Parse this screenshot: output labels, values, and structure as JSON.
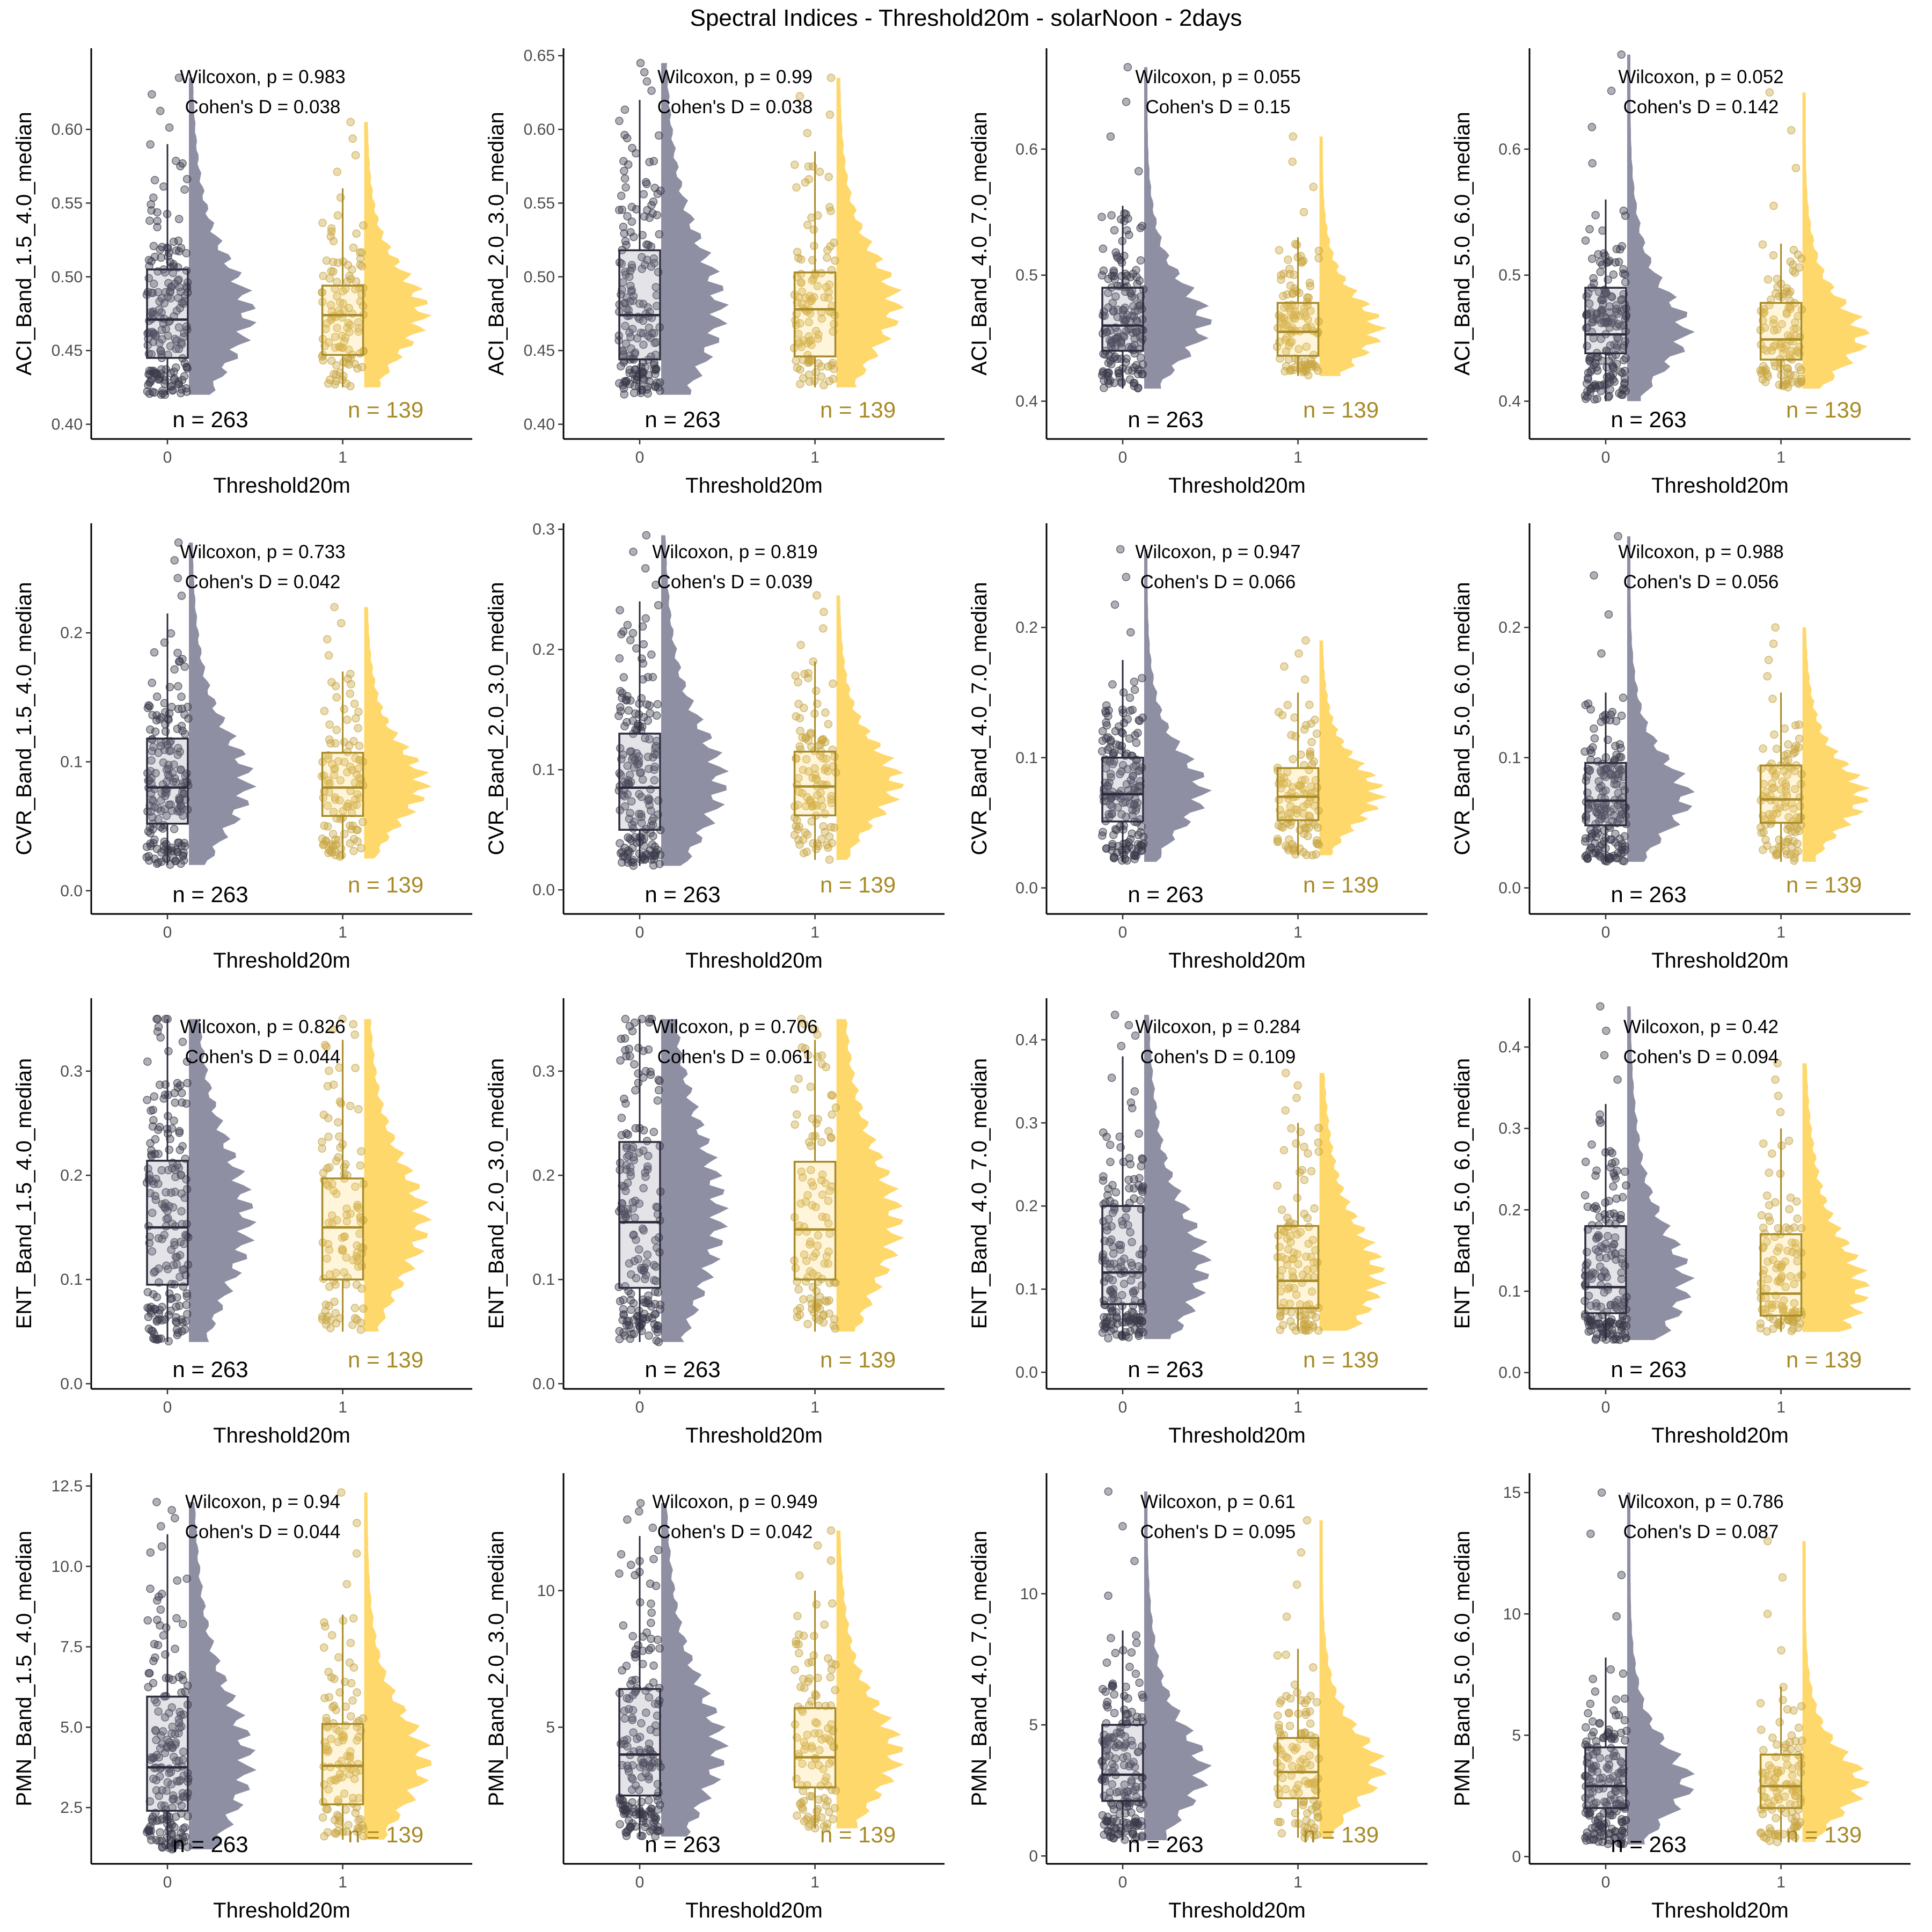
{
  "title": "Spectral Indices - Threshold20m - solarNoon - 2days",
  "colors": {
    "group0_fill": "#8f8fa3",
    "group0_point": "#3a3a4a",
    "group0_box": "#2b2b3d",
    "group1_fill": "#ffd86b",
    "group1_point": "#c9a640",
    "group1_box": "#a88a26",
    "n1_text": "#a88a26"
  },
  "chart_data": [
    {
      "type": "raincloud",
      "ylabel": "ACI_Band_1.5_4.0_median",
      "xlabel": "Threshold20m",
      "categories": [
        "0",
        "1"
      ],
      "ylim": [
        0.39,
        0.655
      ],
      "yticks": [
        0.4,
        0.45,
        0.5,
        0.55,
        0.6
      ],
      "tick_labels": [
        "0.40",
        "0.45",
        "0.50",
        "0.55",
        "0.60"
      ],
      "stat_wilcoxon": "Wilcoxon, p = 0.983",
      "stat_cohen": "Cohen's D = 0.038",
      "n0": "n = 263",
      "n1": "n = 139",
      "series": [
        {
          "name": "0",
          "min": 0.42,
          "q1": 0.445,
          "median": 0.471,
          "q3": 0.505,
          "max": 0.59,
          "max_point": 0.635
        },
        {
          "name": "1",
          "min": 0.425,
          "q1": 0.447,
          "median": 0.474,
          "q3": 0.494,
          "max": 0.56,
          "max_point": 0.605
        }
      ]
    },
    {
      "type": "raincloud",
      "ylabel": "ACI_Band_2.0_3.0_median",
      "xlabel": "Threshold20m",
      "categories": [
        "0",
        "1"
      ],
      "ylim": [
        0.39,
        0.655
      ],
      "yticks": [
        0.4,
        0.45,
        0.5,
        0.55,
        0.6,
        0.65
      ],
      "tick_labels": [
        "0.40",
        "0.45",
        "0.50",
        "0.55",
        "0.60",
        "0.65"
      ],
      "stat_wilcoxon": "Wilcoxon, p = 0.99",
      "stat_cohen": "Cohen's D = 0.038",
      "n0": "n = 263",
      "n1": "n = 139",
      "series": [
        {
          "name": "0",
          "min": 0.42,
          "q1": 0.444,
          "median": 0.474,
          "q3": 0.518,
          "max": 0.62,
          "max_point": 0.645
        },
        {
          "name": "1",
          "min": 0.425,
          "q1": 0.446,
          "median": 0.478,
          "q3": 0.503,
          "max": 0.585,
          "max_point": 0.635
        }
      ]
    },
    {
      "type": "raincloud",
      "ylabel": "ACI_Band_4.0_7.0_median",
      "xlabel": "Threshold20m",
      "categories": [
        "0",
        "1"
      ],
      "ylim": [
        0.37,
        0.68
      ],
      "yticks": [
        0.4,
        0.5,
        0.6
      ],
      "tick_labels": [
        "0.4",
        "0.5",
        "0.6"
      ],
      "stat_wilcoxon": "Wilcoxon, p = 0.055",
      "stat_cohen": "Cohen's D = 0.15",
      "n0": "n = 263",
      "n1": "n = 139",
      "series": [
        {
          "name": "0",
          "min": 0.41,
          "q1": 0.44,
          "median": 0.46,
          "q3": 0.49,
          "max": 0.555,
          "max_point": 0.665
        },
        {
          "name": "1",
          "min": 0.42,
          "q1": 0.436,
          "median": 0.455,
          "q3": 0.478,
          "max": 0.53,
          "max_point": 0.61
        }
      ]
    },
    {
      "type": "raincloud",
      "ylabel": "ACI_Band_5.0_6.0_median",
      "xlabel": "Threshold20m",
      "categories": [
        "0",
        "1"
      ],
      "ylim": [
        0.37,
        0.68
      ],
      "yticks": [
        0.4,
        0.5,
        0.6
      ],
      "tick_labels": [
        "0.4",
        "0.5",
        "0.6"
      ],
      "stat_wilcoxon": "Wilcoxon, p = 0.052",
      "stat_cohen": "Cohen's D = 0.142",
      "n0": "n = 263",
      "n1": "n = 139",
      "series": [
        {
          "name": "0",
          "min": 0.4,
          "q1": 0.438,
          "median": 0.453,
          "q3": 0.49,
          "max": 0.56,
          "max_point": 0.675
        },
        {
          "name": "1",
          "min": 0.41,
          "q1": 0.433,
          "median": 0.449,
          "q3": 0.478,
          "max": 0.525,
          "max_point": 0.645
        }
      ]
    },
    {
      "type": "raincloud",
      "ylabel": "CVR_Band_1.5_4.0_median",
      "xlabel": "Threshold20m",
      "categories": [
        "0",
        "1"
      ],
      "ylim": [
        -0.018,
        0.285
      ],
      "yticks": [
        0.0,
        0.1,
        0.2
      ],
      "tick_labels": [
        "0.0",
        "0.1",
        "0.2"
      ],
      "stat_wilcoxon": "Wilcoxon, p = 0.733",
      "stat_cohen": "Cohen's D = 0.042",
      "n0": "n = 263",
      "n1": "n = 139",
      "series": [
        {
          "name": "0",
          "min": 0.02,
          "q1": 0.052,
          "median": 0.08,
          "q3": 0.118,
          "max": 0.215,
          "max_point": 0.27
        },
        {
          "name": "1",
          "min": 0.025,
          "q1": 0.058,
          "median": 0.08,
          "q3": 0.107,
          "max": 0.17,
          "max_point": 0.22
        }
      ]
    },
    {
      "type": "raincloud",
      "ylabel": "CVR_Band_2.0_3.0_median",
      "xlabel": "Threshold20m",
      "categories": [
        "0",
        "1"
      ],
      "ylim": [
        -0.02,
        0.305
      ],
      "yticks": [
        0.0,
        0.1,
        0.2,
        0.3
      ],
      "tick_labels": [
        "0.0",
        "0.1",
        "0.2",
        "0.3"
      ],
      "stat_wilcoxon": "Wilcoxon, p = 0.819",
      "stat_cohen": "Cohen's D = 0.039",
      "n0": "n = 263",
      "n1": "n = 139",
      "series": [
        {
          "name": "0",
          "min": 0.02,
          "q1": 0.05,
          "median": 0.085,
          "q3": 0.13,
          "max": 0.24,
          "max_point": 0.295
        },
        {
          "name": "1",
          "min": 0.025,
          "q1": 0.062,
          "median": 0.086,
          "q3": 0.115,
          "max": 0.19,
          "max_point": 0.245
        }
      ]
    },
    {
      "type": "raincloud",
      "ylabel": "CVR_Band_4.0_7.0_median",
      "xlabel": "Threshold20m",
      "categories": [
        "0",
        "1"
      ],
      "ylim": [
        -0.02,
        0.28
      ],
      "yticks": [
        0.0,
        0.1,
        0.2
      ],
      "tick_labels": [
        "0.0",
        "0.1",
        "0.2"
      ],
      "stat_wilcoxon": "Wilcoxon, p = 0.947",
      "stat_cohen": "Cohen's D = 0.066",
      "n0": "n = 263",
      "n1": "n = 139",
      "series": [
        {
          "name": "0",
          "min": 0.02,
          "q1": 0.051,
          "median": 0.072,
          "q3": 0.1,
          "max": 0.175,
          "max_point": 0.26
        },
        {
          "name": "1",
          "min": 0.025,
          "q1": 0.052,
          "median": 0.07,
          "q3": 0.092,
          "max": 0.15,
          "max_point": 0.19
        }
      ]
    },
    {
      "type": "raincloud",
      "ylabel": "CVR_Band_5.0_6.0_median",
      "xlabel": "Threshold20m",
      "categories": [
        "0",
        "1"
      ],
      "ylim": [
        -0.02,
        0.28
      ],
      "yticks": [
        0.0,
        0.1,
        0.2
      ],
      "tick_labels": [
        "0.0",
        "0.1",
        "0.2"
      ],
      "stat_wilcoxon": "Wilcoxon, p = 0.988",
      "stat_cohen": "Cohen's D = 0.056",
      "n0": "n = 263",
      "n1": "n = 139",
      "series": [
        {
          "name": "0",
          "min": 0.02,
          "q1": 0.048,
          "median": 0.067,
          "q3": 0.096,
          "max": 0.15,
          "max_point": 0.27
        },
        {
          "name": "1",
          "min": 0.02,
          "q1": 0.05,
          "median": 0.068,
          "q3": 0.094,
          "max": 0.15,
          "max_point": 0.2
        }
      ]
    },
    {
      "type": "raincloud",
      "ylabel": "ENT_Band_1.5_4.0_median",
      "xlabel": "Threshold20m",
      "categories": [
        "0",
        "1"
      ],
      "ylim": [
        -0.005,
        0.37
      ],
      "yticks": [
        0.0,
        0.1,
        0.2,
        0.3
      ],
      "tick_labels": [
        "0.0",
        "0.1",
        "0.2",
        "0.3"
      ],
      "stat_wilcoxon": "Wilcoxon, p = 0.826",
      "stat_cohen": "Cohen's D = 0.044",
      "n0": "n = 263",
      "n1": "n = 139",
      "series": [
        {
          "name": "0",
          "min": 0.04,
          "q1": 0.095,
          "median": 0.15,
          "q3": 0.214,
          "max": 0.35,
          "max_point": 0.35
        },
        {
          "name": "1",
          "min": 0.05,
          "q1": 0.1,
          "median": 0.15,
          "q3": 0.197,
          "max": 0.33,
          "max_point": 0.35
        }
      ]
    },
    {
      "type": "raincloud",
      "ylabel": "ENT_Band_2.0_3.0_median",
      "xlabel": "Threshold20m",
      "categories": [
        "0",
        "1"
      ],
      "ylim": [
        -0.005,
        0.37
      ],
      "yticks": [
        0.0,
        0.1,
        0.2,
        0.3
      ],
      "tick_labels": [
        "0.0",
        "0.1",
        "0.2",
        "0.3"
      ],
      "stat_wilcoxon": "Wilcoxon, p = 0.706",
      "stat_cohen": "Cohen's D = 0.061",
      "n0": "n = 263",
      "n1": "n = 139",
      "series": [
        {
          "name": "0",
          "min": 0.04,
          "q1": 0.092,
          "median": 0.155,
          "q3": 0.232,
          "max": 0.35,
          "max_point": 0.35
        },
        {
          "name": "1",
          "min": 0.05,
          "q1": 0.1,
          "median": 0.148,
          "q3": 0.213,
          "max": 0.33,
          "max_point": 0.35
        }
      ]
    },
    {
      "type": "raincloud",
      "ylabel": "ENT_Band_4.0_7.0_median",
      "xlabel": "Threshold20m",
      "categories": [
        "0",
        "1"
      ],
      "ylim": [
        -0.02,
        0.45
      ],
      "yticks": [
        0.0,
        0.1,
        0.2,
        0.3,
        0.4
      ],
      "tick_labels": [
        "0.0",
        "0.1",
        "0.2",
        "0.3",
        "0.4"
      ],
      "stat_wilcoxon": "Wilcoxon, p = 0.284",
      "stat_cohen": "Cohen's D = 0.109",
      "n0": "n = 263",
      "n1": "n = 139",
      "series": [
        {
          "name": "0",
          "min": 0.04,
          "q1": 0.082,
          "median": 0.12,
          "q3": 0.2,
          "max": 0.38,
          "max_point": 0.43
        },
        {
          "name": "1",
          "min": 0.05,
          "q1": 0.077,
          "median": 0.11,
          "q3": 0.176,
          "max": 0.3,
          "max_point": 0.36
        }
      ]
    },
    {
      "type": "raincloud",
      "ylabel": "ENT_Band_5.0_6.0_median",
      "xlabel": "Threshold20m",
      "categories": [
        "0",
        "1"
      ],
      "ylim": [
        -0.02,
        0.46
      ],
      "yticks": [
        0.0,
        0.1,
        0.2,
        0.3,
        0.4
      ],
      "tick_labels": [
        "0.0",
        "0.1",
        "0.2",
        "0.3",
        "0.4"
      ],
      "stat_wilcoxon": "Wilcoxon, p = 0.42",
      "stat_cohen": "Cohen's D = 0.094",
      "n0": "n = 263",
      "n1": "n = 139",
      "series": [
        {
          "name": "0",
          "min": 0.04,
          "q1": 0.073,
          "median": 0.105,
          "q3": 0.18,
          "max": 0.33,
          "max_point": 0.45
        },
        {
          "name": "1",
          "min": 0.05,
          "q1": 0.07,
          "median": 0.097,
          "q3": 0.17,
          "max": 0.3,
          "max_point": 0.38
        }
      ]
    },
    {
      "type": "raincloud",
      "ylabel": "PMN_Band_1.5_4.0_median",
      "xlabel": "Threshold20m",
      "categories": [
        "0",
        "1"
      ],
      "ylim": [
        0.75,
        12.9
      ],
      "yticks": [
        2.5,
        5.0,
        7.5,
        10.0,
        12.5
      ],
      "tick_labels": [
        "2.5",
        "5.0",
        "7.5",
        "10.0",
        "12.5"
      ],
      "stat_wilcoxon": "Wilcoxon, p = 0.94",
      "stat_cohen": "Cohen's D = 0.044",
      "n0": "n = 263",
      "n1": "n = 139",
      "series": [
        {
          "name": "0",
          "min": 1.2,
          "q1": 2.4,
          "median": 3.75,
          "q3": 5.95,
          "max": 11.0,
          "max_point": 12.0
        },
        {
          "name": "1",
          "min": 1.5,
          "q1": 2.6,
          "median": 3.8,
          "q3": 5.1,
          "max": 8.5,
          "max_point": 12.3
        }
      ]
    },
    {
      "type": "raincloud",
      "ylabel": "PMN_Band_2.0_3.0_median",
      "xlabel": "Threshold20m",
      "categories": [
        "0",
        "1"
      ],
      "ylim": [
        0.0,
        14.3
      ],
      "yticks": [
        5,
        10
      ],
      "tick_labels": [
        "5",
        "10"
      ],
      "stat_wilcoxon": "Wilcoxon, p = 0.949",
      "stat_cohen": "Cohen's D = 0.042",
      "n0": "n = 263",
      "n1": "n = 139",
      "series": [
        {
          "name": "0",
          "min": 1.0,
          "q1": 2.5,
          "median": 4.0,
          "q3": 6.4,
          "max": 12.0,
          "max_point": 13.2
        },
        {
          "name": "1",
          "min": 1.3,
          "q1": 2.8,
          "median": 3.9,
          "q3": 5.7,
          "max": 10.0,
          "max_point": 12.2
        }
      ]
    },
    {
      "type": "raincloud",
      "ylabel": "PMN_Band_4.0_7.0_median",
      "xlabel": "Threshold20m",
      "categories": [
        "0",
        "1"
      ],
      "ylim": [
        -0.3,
        14.6
      ],
      "yticks": [
        0,
        5,
        10
      ],
      "tick_labels": [
        "0",
        "5",
        "10"
      ],
      "stat_wilcoxon": "Wilcoxon, p = 0.61",
      "stat_cohen": "Cohen's D = 0.095",
      "n0": "n = 263",
      "n1": "n = 139",
      "series": [
        {
          "name": "0",
          "min": 0.6,
          "q1": 2.1,
          "median": 3.1,
          "q3": 5.0,
          "max": 8.6,
          "max_point": 13.9
        },
        {
          "name": "1",
          "min": 0.7,
          "q1": 2.2,
          "median": 3.2,
          "q3": 4.5,
          "max": 7.9,
          "max_point": 12.8
        }
      ]
    },
    {
      "type": "raincloud",
      "ylabel": "PMN_Band_5.0_6.0_median",
      "xlabel": "Threshold20m",
      "categories": [
        "0",
        "1"
      ],
      "ylim": [
        -0.3,
        15.8
      ],
      "yticks": [
        0,
        5,
        10,
        15
      ],
      "tick_labels": [
        "0",
        "5",
        "10",
        "15"
      ],
      "stat_wilcoxon": "Wilcoxon, p = 0.786",
      "stat_cohen": "Cohen's D = 0.087",
      "n0": "n = 263",
      "n1": "n = 139",
      "series": [
        {
          "name": "0",
          "min": 0.5,
          "q1": 2.0,
          "median": 2.9,
          "q3": 4.5,
          "max": 8.2,
          "max_point": 15.0
        },
        {
          "name": "1",
          "min": 0.6,
          "q1": 2.0,
          "median": 2.9,
          "q3": 4.2,
          "max": 7.0,
          "max_point": 13.0
        }
      ]
    }
  ]
}
